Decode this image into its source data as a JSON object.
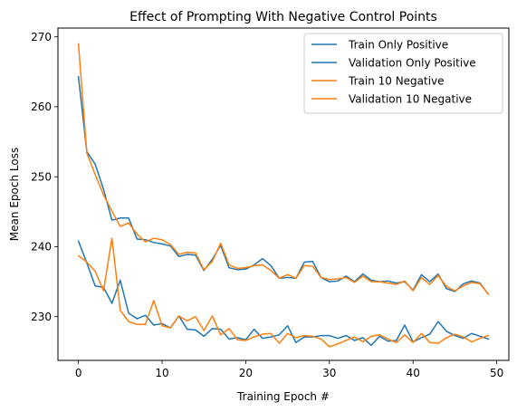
{
  "chart_data": {
    "type": "line",
    "title": "Effect of Prompting With Negative Control Points",
    "xlabel": "Training Epoch #",
    "ylabel": "Mean Epoch Loss",
    "xlim": [
      -2.45,
      51.45
    ],
    "ylim": [
      223.75,
      271.25
    ],
    "xticks": [
      0,
      10,
      20,
      30,
      40,
      50
    ],
    "yticks": [
      230,
      240,
      250,
      260,
      270
    ],
    "grid": false,
    "legend_position": "top-right",
    "x": [
      0,
      1,
      2,
      3,
      4,
      5,
      6,
      7,
      8,
      9,
      10,
      11,
      12,
      13,
      14,
      15,
      16,
      17,
      18,
      19,
      20,
      21,
      22,
      23,
      24,
      25,
      26,
      27,
      28,
      29,
      30,
      31,
      32,
      33,
      34,
      35,
      36,
      37,
      38,
      39,
      40,
      41,
      42,
      43,
      44,
      45,
      46,
      47,
      48,
      49
    ],
    "series": [
      {
        "name": "Train Only Positive",
        "color": "#1f77b4",
        "values": [
          264.3,
          253.6,
          251.8,
          248.2,
          243.8,
          244.1,
          244.1,
          241.1,
          241.0,
          240.6,
          240.4,
          240.1,
          238.6,
          238.9,
          238.8,
          236.6,
          238.2,
          240.2,
          237.0,
          236.7,
          236.8,
          237.4,
          238.3,
          237.3,
          235.5,
          235.6,
          235.5,
          237.8,
          237.9,
          235.6,
          235.0,
          235.1,
          235.8,
          235.0,
          236.1,
          235.2,
          235.0,
          235.1,
          234.8,
          235.0,
          233.8,
          236.0,
          235.0,
          236.1,
          234.0,
          233.6,
          234.7,
          235.1,
          234.8,
          233.2
        ]
      },
      {
        "name": "Validation Only Positive",
        "color": "#1f77b4",
        "values": [
          240.8,
          237.7,
          234.4,
          234.2,
          231.9,
          235.2,
          230.5,
          229.7,
          230.2,
          228.8,
          229.0,
          228.4,
          230.1,
          228.2,
          228.1,
          227.2,
          228.3,
          228.2,
          226.8,
          227.0,
          226.7,
          228.2,
          226.9,
          227.1,
          227.4,
          228.7,
          226.3,
          227.1,
          227.1,
          227.3,
          227.3,
          226.9,
          227.3,
          226.6,
          227.0,
          225.9,
          227.2,
          226.5,
          226.6,
          228.8,
          226.4,
          227.0,
          227.5,
          229.3,
          227.9,
          227.3,
          226.9,
          227.6,
          227.2,
          226.8
        ]
      },
      {
        "name": "Train 10 Negative",
        "color": "#ff7f0e",
        "values": [
          269.0,
          253.4,
          250.3,
          247.4,
          245.1,
          242.9,
          243.4,
          241.8,
          240.7,
          241.2,
          241.0,
          240.3,
          238.9,
          239.2,
          239.1,
          236.7,
          237.9,
          240.5,
          237.4,
          236.9,
          237.0,
          237.3,
          237.4,
          236.6,
          235.5,
          236.0,
          235.5,
          237.3,
          237.2,
          235.6,
          235.3,
          235.4,
          235.6,
          234.9,
          235.8,
          235.0,
          235.0,
          234.8,
          234.6,
          235.1,
          233.7,
          235.6,
          234.6,
          235.9,
          234.3,
          233.7,
          234.4,
          234.9,
          234.7,
          233.2
        ]
      },
      {
        "name": "Validation 10 Negative",
        "color": "#ff7f0e",
        "values": [
          238.7,
          237.8,
          236.5,
          233.7,
          241.2,
          230.9,
          229.3,
          228.9,
          228.9,
          232.3,
          228.7,
          228.4,
          230.1,
          229.4,
          230.0,
          228.0,
          230.1,
          227.4,
          228.3,
          226.7,
          226.6,
          227.1,
          227.5,
          227.6,
          226.2,
          227.6,
          227.0,
          227.3,
          227.2,
          226.8,
          225.7,
          226.1,
          226.6,
          227.1,
          226.4,
          227.2,
          227.4,
          226.8,
          226.3,
          227.4,
          226.3,
          227.6,
          226.3,
          226.2,
          227.0,
          227.5,
          227.1,
          226.4,
          226.9,
          227.3
        ]
      }
    ]
  }
}
